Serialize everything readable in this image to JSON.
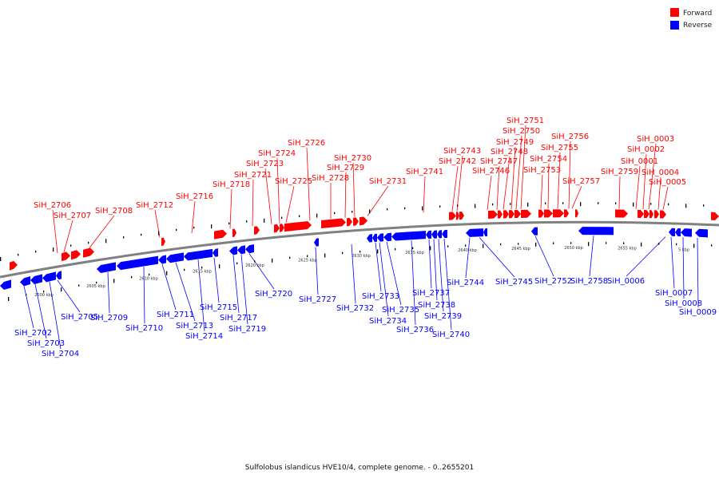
{
  "caption": "Sulfolobus islandicus HVE10/4, complete genome. - 0..2655201",
  "legend": [
    {
      "label": "Forward",
      "color": "#ff0000"
    },
    {
      "label": "Reverse",
      "color": "#0000ff"
    }
  ],
  "colors": {
    "forward": "#ff0000",
    "reverse": "#0000ff",
    "backbone": "#808080",
    "ruler": "#000000"
  },
  "ticks": [
    "2600 kbp",
    "2605 kbp",
    "2610 kbp",
    "2615 kbp",
    "2620 kbp",
    "2625 kbp",
    "2630 kbp",
    "2635 kbp",
    "2640 kbp",
    "2645 kbp",
    "2650 kbp",
    "2655 kbp",
    "5 kbp"
  ],
  "forward_genes": [
    "SiH_2706",
    "SiH_2707",
    "SiH_2708",
    "SiH_2712",
    "SiH_2716",
    "SiH_2718",
    "SiH_2721",
    "SiH_2723",
    "SiH_2724",
    "SiH_2725",
    "SiH_2726",
    "SiH_2728",
    "SiH_2729",
    "SiH_2730",
    "SiH_2731",
    "SiH_2741",
    "SiH_2742",
    "SiH_2743",
    "SiH_2746",
    "SiH_2747",
    "SiH_2748",
    "SiH_2749",
    "SiH_2750",
    "SiH_2751",
    "SiH_2753",
    "SiH_2754",
    "SiH_2755",
    "SiH_2756",
    "SiH_2757",
    "SiH_2759",
    "SiH_0001",
    "SiH_0002",
    "SiH_0003",
    "SiH_0004",
    "SiH_0005"
  ],
  "reverse_genes": [
    "SiH_2702",
    "SiH_2703",
    "SiH_2704",
    "SiH_2705",
    "SiH_2709",
    "SiH_2710",
    "SiH_2711",
    "SiH_2713",
    "SiH_2714",
    "SiH_2715",
    "SiH_2717",
    "SiH_2719",
    "SiH_2720",
    "SiH_2727",
    "SiH_2732",
    "SiH_2733",
    "SiH_2734",
    "SiH_2735",
    "SiH_2736",
    "SiH_2737",
    "SiH_2738",
    "SiH_2739",
    "SiH_2740",
    "SiH_2744",
    "SiH_2745",
    "SiH_2752",
    "SiH_2758",
    "SiH_0006",
    "SiH_0007",
    "SiH_0008",
    "SiH_0009"
  ]
}
